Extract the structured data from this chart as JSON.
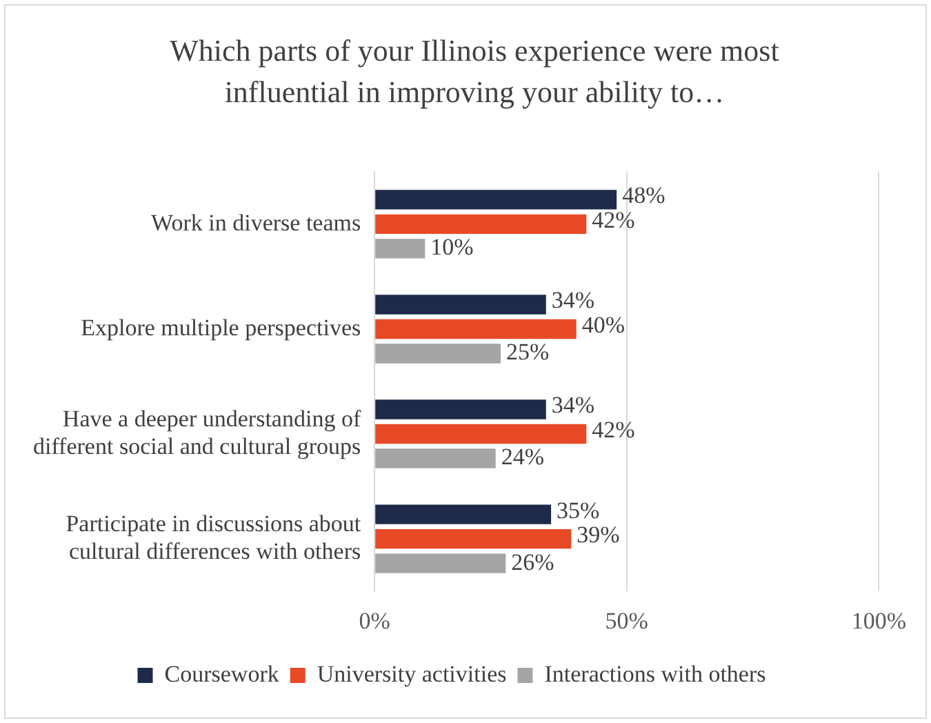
{
  "chart_data": {
    "type": "bar",
    "orientation": "horizontal",
    "title": "Which parts of your Illinois experience were most influential in improving your ability to…",
    "categories": [
      "Work in diverse teams",
      "Explore multiple perspectives",
      "Have a deeper understanding of different social and cultural groups",
      "Participate in discussions about cultural differences with others"
    ],
    "series": [
      {
        "name": "Coursework",
        "color": "#1f2a4a",
        "values": [
          48,
          34,
          34,
          35
        ],
        "value_labels": [
          "48%",
          "34%",
          "34%",
          "35%"
        ]
      },
      {
        "name": "University activities",
        "color": "#e84a27",
        "values": [
          42,
          40,
          42,
          39
        ],
        "value_labels": [
          "42%",
          "40%",
          "42%",
          "39%"
        ]
      },
      {
        "name": "Interactions with others",
        "color": "#a5a5a5",
        "values": [
          10,
          25,
          24,
          26
        ],
        "value_labels": [
          "10%",
          "25%",
          "24%",
          "26%"
        ]
      }
    ],
    "xlim": [
      0,
      100
    ],
    "xticks": [
      {
        "value": 0,
        "label": "0%"
      },
      {
        "value": 50,
        "label": "50%"
      },
      {
        "value": 100,
        "label": "100%"
      }
    ],
    "grid": "x",
    "legend": "bottom"
  }
}
